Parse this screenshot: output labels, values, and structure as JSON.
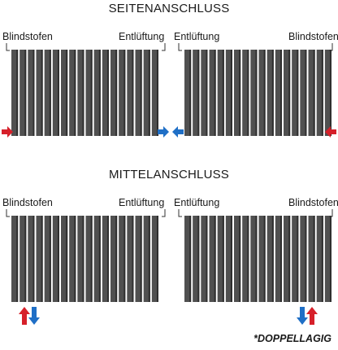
{
  "sections": [
    {
      "title": "SEITENANSCHLUSS",
      "radiators": [
        {
          "left_label": "Blindstofen",
          "right_label": "Entlüftung"
        },
        {
          "left_label": "Entlüftung",
          "right_label": "Blindstofen"
        }
      ]
    },
    {
      "title": "MITTELANSCHLUSS",
      "radiators": [
        {
          "left_label": "Blindstofen",
          "right_label": "Entlüftung"
        },
        {
          "left_label": "Entlüftung",
          "right_label": "Blindstofen"
        }
      ]
    }
  ],
  "footnote": "*DOPPELLAGIG",
  "colors": {
    "supply": "#d6202a",
    "return": "#1f6fc6",
    "radiator": "#505050",
    "radiator_dark": "#2f2f2f"
  }
}
